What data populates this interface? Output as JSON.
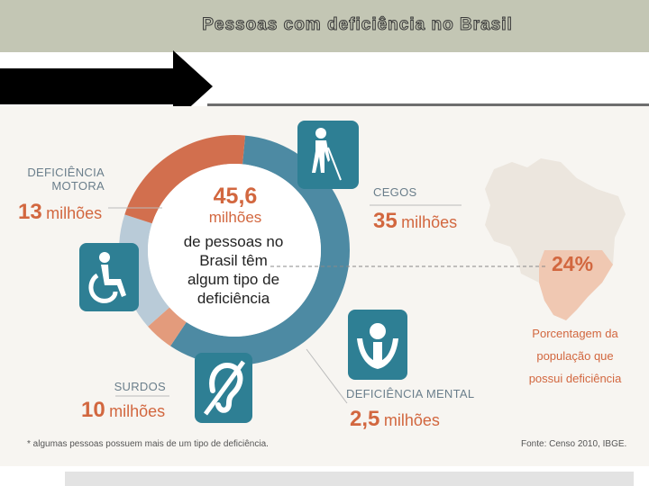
{
  "slide": {
    "title": "Pessoas com deficiência no Brasil"
  },
  "chart_data": {
    "type": "pie",
    "center": {
      "value": "45,6",
      "unit": "milhões",
      "text": "de pessoas no Brasil têm algum tipo de deficiência"
    },
    "categories": [
      "CEGOS",
      "DEFICIÊNCIA MENTAL",
      "SURDOS",
      "DEFICIÊNCIA MOTORA"
    ],
    "values": [
      35,
      2.5,
      10,
      13
    ],
    "value_labels": [
      "35",
      "2,5",
      "10",
      "13"
    ],
    "unit": "milhões",
    "colors": [
      "#4d8aa3",
      "#e39b7c",
      "#b9cbd8",
      "#d26f4e"
    ],
    "icons": [
      "blind-person-icon",
      "intellectual-disability-icon",
      "deaf-ear-icon",
      "wheelchair-icon"
    ],
    "map": {
      "percentage": "24%",
      "caption": "Porcentagem da população que possui deficiência",
      "icon": "brazil-map-icon"
    },
    "footnote": "* algumas pessoas possuem mais de um tipo de deficiência.",
    "source": "Fonte: Censo 2010, IBGE."
  }
}
